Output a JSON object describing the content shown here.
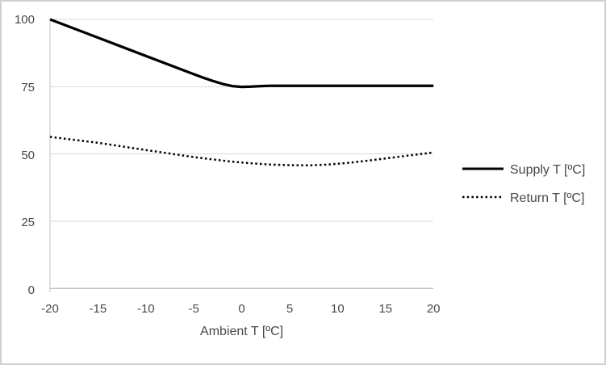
{
  "chart_data": {
    "type": "line",
    "title": "",
    "xlabel": "Ambient T [ºC]",
    "ylabel": "",
    "xlim": [
      -20,
      20
    ],
    "ylim": [
      0,
      100
    ],
    "xticks": [
      -20,
      -15,
      -10,
      -5,
      0,
      5,
      10,
      15,
      20
    ],
    "yticks": [
      0,
      25,
      50,
      75,
      100
    ],
    "xtick_labels": [
      "-20",
      "-15",
      "-10",
      "-5",
      "0",
      "5",
      "10",
      "15",
      "20"
    ],
    "ytick_labels": [
      "0",
      "25",
      "50",
      "75",
      "100"
    ],
    "grid": "horizontal-only",
    "legend_position": "right-middle",
    "colors": {
      "series": "#000000",
      "gridline": "#d9d9d9",
      "axis_line": "#bfbfbf",
      "label_text": "#484848",
      "border": "#d0cece"
    },
    "series": [
      {
        "name": "Supply T [ºC]",
        "style": "solid",
        "color": "#000000",
        "points": [
          [
            -20,
            100
          ],
          [
            -15,
            93.2
          ],
          [
            -10,
            86.4
          ],
          [
            -5,
            79.6
          ],
          [
            -4,
            78.3
          ],
          [
            -3,
            77.1
          ],
          [
            -2,
            76.0
          ],
          [
            -1,
            75.2
          ],
          [
            0,
            74.9
          ],
          [
            1,
            75.0
          ],
          [
            2,
            75.2
          ],
          [
            3,
            75.3
          ],
          [
            5,
            75.3
          ],
          [
            10,
            75.3
          ],
          [
            15,
            75.3
          ],
          [
            20,
            75.3
          ]
        ]
      },
      {
        "name": "Return T [ºC]",
        "style": "dotted",
        "color": "#000000",
        "points": [
          [
            -20,
            56.3
          ],
          [
            -15,
            54.1
          ],
          [
            -10,
            51.4
          ],
          [
            -5,
            48.8
          ],
          [
            -3,
            47.9
          ],
          [
            -1,
            47.1
          ],
          [
            0,
            46.8
          ],
          [
            1,
            46.5
          ],
          [
            3,
            46.0
          ],
          [
            5,
            45.8
          ],
          [
            7,
            45.7
          ],
          [
            9,
            46.0
          ],
          [
            11,
            46.6
          ],
          [
            13,
            47.4
          ],
          [
            15,
            48.3
          ],
          [
            17,
            49.2
          ],
          [
            20,
            50.5
          ]
        ]
      }
    ]
  }
}
